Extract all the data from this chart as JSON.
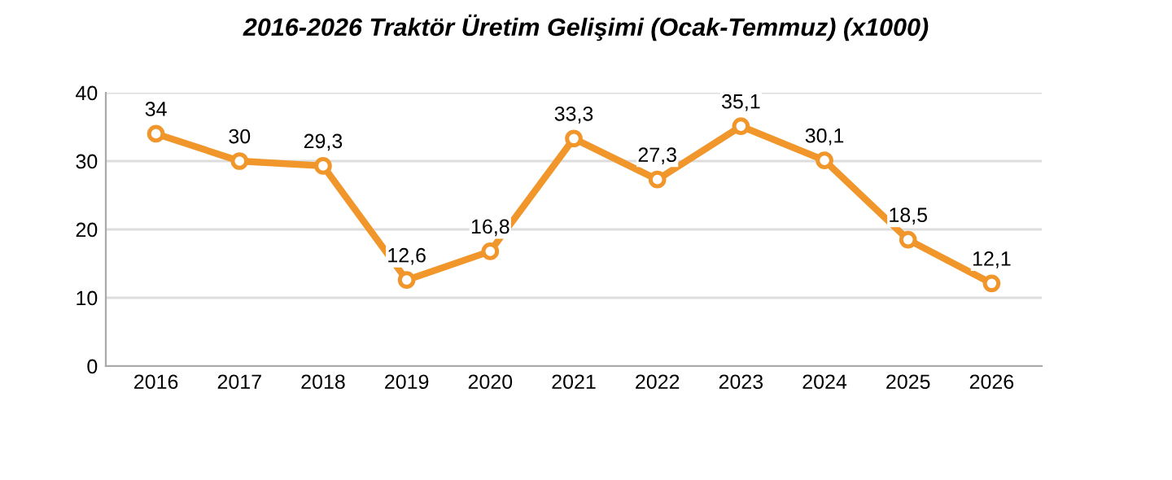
{
  "chart_data": {
    "type": "line",
    "title": "2016-2026 Traktör Üretim Gelişimi (Ocak-Temmuz) (x1000)",
    "categories": [
      "2016",
      "2017",
      "2018",
      "2019",
      "2020",
      "2021",
      "2022",
      "2023",
      "2024",
      "2025",
      "2026"
    ],
    "series": [
      {
        "color": "#f0962a",
        "values": [
          34,
          30,
          29.3,
          12.6,
          16.8,
          33.3,
          27.3,
          35.1,
          30.1,
          18.5,
          12.1
        ],
        "value_labels": [
          "34",
          "30",
          "29,3",
          "12,6",
          "16,8",
          "33,3",
          "27,3",
          "35,1",
          "30,1",
          "18,5",
          "12,1"
        ]
      }
    ],
    "ylim": [
      0,
      40
    ],
    "yticks": [
      0,
      10,
      20,
      30,
      40
    ],
    "grid": "y",
    "marker": "circle",
    "line_style": "solid"
  }
}
